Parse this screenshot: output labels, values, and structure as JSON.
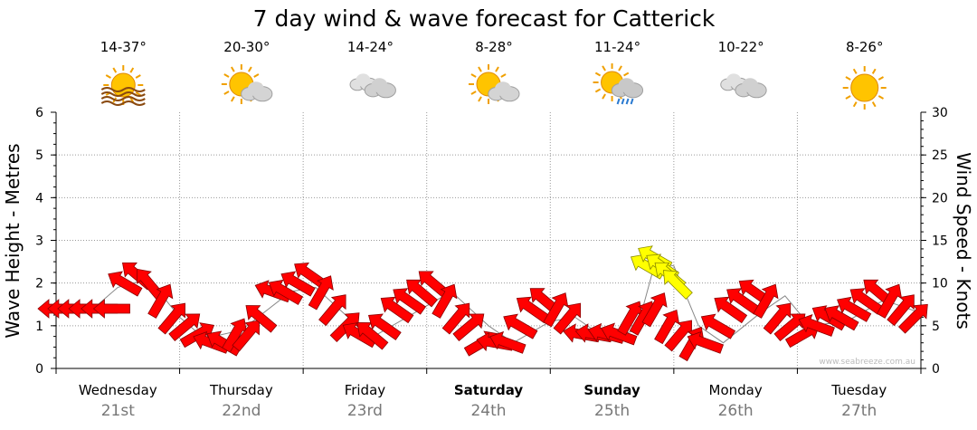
{
  "chart_data": {
    "type": "line",
    "title": "7 day wind & wave forecast for Catterick",
    "ylabel": "Wave Height - Metres",
    "y2label": "Wind Speed - Knots",
    "ylim": [
      0,
      6
    ],
    "y2lim": [
      0,
      30
    ],
    "yticks": [
      "0",
      "1",
      "2",
      "3",
      "4",
      "5",
      "6"
    ],
    "y2ticks": [
      "0",
      "5",
      "10",
      "15",
      "20",
      "25",
      "30"
    ],
    "grid": true,
    "days": [
      {
        "name": "Wednesday",
        "date": "21st",
        "temp": "14-37°",
        "icon": "sun-haze-icon",
        "bold": false
      },
      {
        "name": "Thursday",
        "date": "22nd",
        "temp": "20-30°",
        "icon": "partly-cloudy-icon",
        "bold": false
      },
      {
        "name": "Friday",
        "date": "23rd",
        "temp": "14-24°",
        "icon": "cloudy-icon",
        "bold": false
      },
      {
        "name": "Saturday",
        "date": "24th",
        "temp": "8-28°",
        "icon": "partly-cloudy-icon",
        "bold": true
      },
      {
        "name": "Sunday",
        "date": "25th",
        "temp": "11-24°",
        "icon": "shower-icon",
        "bold": true
      },
      {
        "name": "Monday",
        "date": "26th",
        "temp": "10-22°",
        "icon": "cloudy-icon",
        "bold": false
      },
      {
        "name": "Tuesday",
        "date": "27th",
        "temp": "8-26°",
        "icon": "sunny-icon",
        "bold": false
      }
    ],
    "wind_series": [
      {
        "t": 0.0,
        "speed": 7,
        "dir": 180
      },
      {
        "t": 0.08,
        "speed": 7,
        "dir": 180
      },
      {
        "t": 0.16,
        "speed": 7,
        "dir": 180
      },
      {
        "t": 0.25,
        "speed": 7,
        "dir": 180
      },
      {
        "t": 0.35,
        "speed": 7,
        "dir": 180
      },
      {
        "t": 0.45,
        "speed": 7,
        "dir": 180
      },
      {
        "t": 0.55,
        "speed": 10,
        "dir": 210
      },
      {
        "t": 0.65,
        "speed": 11,
        "dir": 220
      },
      {
        "t": 0.75,
        "speed": 10,
        "dir": 230
      },
      {
        "t": 0.85,
        "speed": 8,
        "dir": 300
      },
      {
        "t": 0.95,
        "speed": 6,
        "dir": 310
      },
      {
        "t": 1.05,
        "speed": 5,
        "dir": 320
      },
      {
        "t": 1.15,
        "speed": 4,
        "dir": 330
      },
      {
        "t": 1.25,
        "speed": 3,
        "dir": 200
      },
      {
        "t": 1.35,
        "speed": 3,
        "dir": 210
      },
      {
        "t": 1.45,
        "speed": 4,
        "dir": 300
      },
      {
        "t": 1.55,
        "speed": 4,
        "dir": 310
      },
      {
        "t": 1.65,
        "speed": 6,
        "dir": 220
      },
      {
        "t": 1.75,
        "speed": 9,
        "dir": 200
      },
      {
        "t": 1.85,
        "speed": 9,
        "dir": 210
      },
      {
        "t": 1.95,
        "speed": 10,
        "dir": 210
      },
      {
        "t": 2.05,
        "speed": 11,
        "dir": 215
      },
      {
        "t": 2.15,
        "speed": 9,
        "dir": 300
      },
      {
        "t": 2.25,
        "speed": 7,
        "dir": 310
      },
      {
        "t": 2.35,
        "speed": 5,
        "dir": 315
      },
      {
        "t": 2.45,
        "speed": 4,
        "dir": 210
      },
      {
        "t": 2.55,
        "speed": 4,
        "dir": 220
      },
      {
        "t": 2.65,
        "speed": 5,
        "dir": 215
      },
      {
        "t": 2.75,
        "speed": 7,
        "dir": 215
      },
      {
        "t": 2.85,
        "speed": 8,
        "dir": 215
      },
      {
        "t": 2.95,
        "speed": 9,
        "dir": 220
      },
      {
        "t": 3.05,
        "speed": 10,
        "dir": 220
      },
      {
        "t": 3.15,
        "speed": 8,
        "dir": 300
      },
      {
        "t": 3.25,
        "speed": 6,
        "dir": 310
      },
      {
        "t": 3.35,
        "speed": 5,
        "dir": 320
      },
      {
        "t": 3.45,
        "speed": 3,
        "dir": 330
      },
      {
        "t": 3.55,
        "speed": 3,
        "dir": 190
      },
      {
        "t": 3.65,
        "speed": 3,
        "dir": 200
      },
      {
        "t": 3.75,
        "speed": 5,
        "dir": 210
      },
      {
        "t": 3.85,
        "speed": 7,
        "dir": 215
      },
      {
        "t": 3.95,
        "speed": 8,
        "dir": 220
      },
      {
        "t": 4.05,
        "speed": 7,
        "dir": 300
      },
      {
        "t": 4.15,
        "speed": 6,
        "dir": 310
      },
      {
        "t": 4.25,
        "speed": 4,
        "dir": 190
      },
      {
        "t": 4.35,
        "speed": 4,
        "dir": 190
      },
      {
        "t": 4.45,
        "speed": 4,
        "dir": 195
      },
      {
        "t": 4.55,
        "speed": 4,
        "dir": 200
      },
      {
        "t": 4.65,
        "speed": 6,
        "dir": 300
      },
      {
        "t": 4.75,
        "speed": 6,
        "dir": 300
      },
      {
        "t": 4.85,
        "speed": 7,
        "dir": 300
      },
      {
        "t": 4.95,
        "speed": 5,
        "dir": 300
      },
      {
        "t": 5.05,
        "speed": 4,
        "dir": 310
      },
      {
        "t": 5.15,
        "speed": 3,
        "dir": 300
      },
      {
        "t": 5.25,
        "speed": 3,
        "dir": 200
      },
      {
        "t": 5.35,
        "speed": 5,
        "dir": 210
      },
      {
        "t": 5.45,
        "speed": 7,
        "dir": 215
      },
      {
        "t": 5.55,
        "speed": 8,
        "dir": 215
      },
      {
        "t": 5.65,
        "speed": 9,
        "dir": 215
      },
      {
        "t": 5.75,
        "speed": 8,
        "dir": 300
      },
      {
        "t": 5.85,
        "speed": 6,
        "dir": 310
      },
      {
        "t": 5.95,
        "speed": 5,
        "dir": 320
      },
      {
        "t": 6.05,
        "speed": 4,
        "dir": 330
      },
      {
        "t": 6.15,
        "speed": 5,
        "dir": 200
      },
      {
        "t": 6.25,
        "speed": 6,
        "dir": 210
      },
      {
        "t": 6.35,
        "speed": 6,
        "dir": 210
      },
      {
        "t": 6.45,
        "speed": 7,
        "dir": 210
      },
      {
        "t": 6.55,
        "speed": 8,
        "dir": 215
      },
      {
        "t": 6.65,
        "speed": 9,
        "dir": 220
      },
      {
        "t": 6.75,
        "speed": 8,
        "dir": 300
      },
      {
        "t": 6.85,
        "speed": 7,
        "dir": 310
      },
      {
        "t": 6.95,
        "speed": 6,
        "dir": 315
      }
    ],
    "wave_series": [
      {
        "t": 0.0,
        "m": 1.4
      },
      {
        "t": 0.3,
        "m": 1.4
      },
      {
        "t": 0.5,
        "m": 1.9
      },
      {
        "t": 0.75,
        "m": 2.1
      },
      {
        "t": 1.0,
        "m": 1.2
      },
      {
        "t": 1.2,
        "m": 0.7
      },
      {
        "t": 1.5,
        "m": 0.9
      },
      {
        "t": 1.9,
        "m": 1.8
      },
      {
        "t": 2.1,
        "m": 1.9
      },
      {
        "t": 2.4,
        "m": 1.1
      },
      {
        "t": 2.6,
        "m": 0.8
      },
      {
        "t": 2.9,
        "m": 1.3
      },
      {
        "t": 3.2,
        "m": 1.8
      },
      {
        "t": 3.5,
        "m": 1.0
      },
      {
        "t": 3.7,
        "m": 0.6
      },
      {
        "t": 4.0,
        "m": 1.1
      },
      {
        "t": 4.2,
        "m": 1.2
      },
      {
        "t": 4.45,
        "m": 0.7
      },
      {
        "t": 4.7,
        "m": 0.9
      },
      {
        "t": 4.85,
        "m": 2.5
      },
      {
        "t": 5.0,
        "m": 2.4
      },
      {
        "t": 5.2,
        "m": 1.0
      },
      {
        "t": 5.4,
        "m": 0.6
      },
      {
        "t": 5.7,
        "m": 1.3
      },
      {
        "t": 5.9,
        "m": 1.7
      },
      {
        "t": 6.1,
        "m": 1.0
      },
      {
        "t": 6.4,
        "m": 1.1
      },
      {
        "t": 6.7,
        "m": 1.6
      },
      {
        "t": 7.0,
        "m": 1.3
      }
    ],
    "swell_series": [
      {
        "t": 4.78,
        "speed": 12,
        "dir": 210
      },
      {
        "t": 4.84,
        "speed": 13,
        "dir": 210
      },
      {
        "t": 4.9,
        "speed": 12,
        "dir": 215
      },
      {
        "t": 4.96,
        "speed": 11,
        "dir": 220
      },
      {
        "t": 5.02,
        "speed": 10,
        "dir": 225
      }
    ],
    "credit": "www.seabreeze.com.au"
  }
}
